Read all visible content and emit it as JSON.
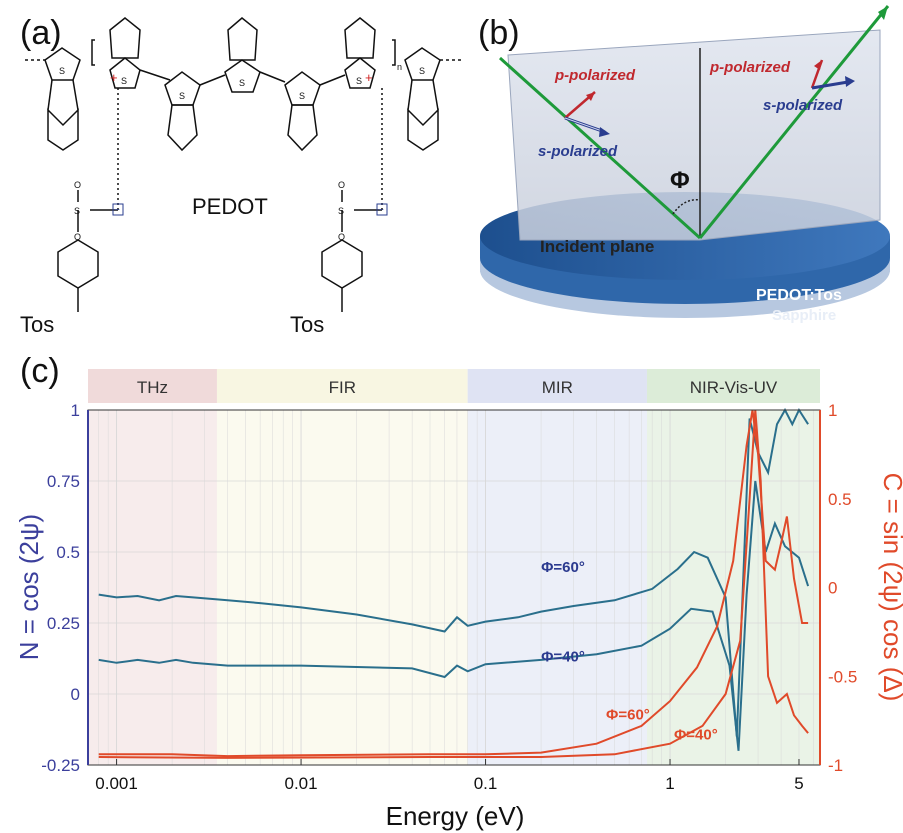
{
  "panel_a": {
    "label": "(a)",
    "molecule_name": "PEDOT",
    "tos_left": "Tos",
    "tos_right": "Tos",
    "atom_S": "S",
    "atom_O": "O",
    "subscript_n": "n",
    "plus": "+",
    "minus": "−"
  },
  "panel_b": {
    "label": "(b)",
    "p_polarized": "p-polarized",
    "s_polarized": "s-polarized",
    "angle_symbol": "Φ",
    "incident_plane": "Incident plane",
    "film": "PEDOT:Tos",
    "substrate": "Sapphire",
    "colors": {
      "beam": "#1e9a3a",
      "p_arrow": "#c0282e",
      "s_arrow": "#2a3d8f",
      "film": "#2d5f9e",
      "substrate": "#a9bdd6"
    }
  },
  "panel_c": {
    "label": "(c)",
    "chart_data": {
      "type": "line",
      "xscale": "log",
      "xlabel": "Energy (eV)",
      "ylabel_left": "N = cos (2ψ)",
      "ylabel_right": "C = sin (2ψ) cos (Δ)",
      "xlim": [
        0.0007,
        6.5
      ],
      "ylim_left": [
        -0.25,
        1
      ],
      "ylim_right": [
        -1,
        1
      ],
      "x_ticks": [
        {
          "v": 0.001,
          "label": "0.001"
        },
        {
          "v": 0.01,
          "label": "0.01"
        },
        {
          "v": 0.1,
          "label": "0.1"
        },
        {
          "v": 1,
          "label": "1"
        },
        {
          "v": 5,
          "label": "5"
        }
      ],
      "y_left_ticks": [
        {
          "v": 1,
          "label": "1"
        },
        {
          "v": 0.75,
          "label": "0.75"
        },
        {
          "v": 0.5,
          "label": "0.5"
        },
        {
          "v": 0.25,
          "label": "0.25"
        },
        {
          "v": 0,
          "label": "0"
        },
        {
          "v": -0.25,
          "label": "-0.25"
        }
      ],
      "y_right_ticks": [
        {
          "v": 1,
          "label": "1"
        },
        {
          "v": 0.5,
          "label": "0.5"
        },
        {
          "v": 0,
          "label": "0"
        },
        {
          "v": -0.5,
          "label": "-0.5"
        },
        {
          "v": -1,
          "label": "-1"
        }
      ],
      "regions": [
        {
          "label": "THz",
          "from": 0.0007,
          "to": 0.0035,
          "color": "#f0dada",
          "bg": "#f7ecec"
        },
        {
          "label": "FIR",
          "from": 0.0035,
          "to": 0.08,
          "color": "#f8f6e2",
          "bg": "#fbfaef"
        },
        {
          "label": "MIR",
          "from": 0.08,
          "to": 0.75,
          "color": "#dfe3f3",
          "bg": "#eceff8"
        },
        {
          "label": "NIR-Vis-UV",
          "from": 0.75,
          "to": 6.5,
          "color": "#dcecd8",
          "bg": "#eaf3e7"
        }
      ],
      "annotations": [
        {
          "text": "Φ=60°",
          "x": 0.2,
          "y": 0.43,
          "axis": "left",
          "color": "#2b3a8f"
        },
        {
          "text": "Φ=40°",
          "x": 0.2,
          "y": 0.115,
          "axis": "left",
          "color": "#2b3a8f"
        },
        {
          "text": "Φ=60°",
          "x": 0.45,
          "y": -0.745,
          "axis": "right",
          "color": "#e04a2a"
        },
        {
          "text": "Φ=40°",
          "x": 1.05,
          "y": -0.855,
          "axis": "right",
          "color": "#e04a2a"
        }
      ],
      "series": [
        {
          "axis": "left",
          "color": "#2a6f8c",
          "points": [
            [
              0.0008,
              0.35
            ],
            [
              0.001,
              0.34
            ],
            [
              0.0013,
              0.345
            ],
            [
              0.0017,
              0.33
            ],
            [
              0.0021,
              0.345
            ],
            [
              0.0026,
              0.34
            ],
            [
              0.004,
              0.33
            ],
            [
              0.006,
              0.32
            ],
            [
              0.01,
              0.305
            ],
            [
              0.02,
              0.28
            ],
            [
              0.04,
              0.245
            ],
            [
              0.06,
              0.22
            ],
            [
              0.07,
              0.27
            ],
            [
              0.08,
              0.24
            ],
            [
              0.1,
              0.255
            ],
            [
              0.15,
              0.27
            ],
            [
              0.2,
              0.29
            ],
            [
              0.3,
              0.31
            ],
            [
              0.5,
              0.33
            ],
            [
              0.8,
              0.37
            ],
            [
              1.1,
              0.44
            ],
            [
              1.35,
              0.5
            ],
            [
              1.6,
              0.48
            ],
            [
              2.0,
              0.34
            ],
            [
              2.3,
              -0.15
            ],
            [
              2.5,
              0.42
            ],
            [
              2.7,
              0.97
            ],
            [
              3.0,
              0.85
            ],
            [
              3.4,
              0.78
            ],
            [
              3.8,
              0.95
            ],
            [
              4.2,
              1.0
            ],
            [
              4.6,
              0.95
            ],
            [
              5.0,
              1.0
            ],
            [
              5.6,
              0.95
            ]
          ]
        },
        {
          "axis": "left",
          "color": "#2a6f8c",
          "points": [
            [
              0.0008,
              0.12
            ],
            [
              0.001,
              0.11
            ],
            [
              0.0013,
              0.12
            ],
            [
              0.0017,
              0.11
            ],
            [
              0.0021,
              0.12
            ],
            [
              0.0026,
              0.11
            ],
            [
              0.004,
              0.1
            ],
            [
              0.007,
              0.1
            ],
            [
              0.01,
              0.1
            ],
            [
              0.02,
              0.095
            ],
            [
              0.04,
              0.09
            ],
            [
              0.06,
              0.06
            ],
            [
              0.07,
              0.1
            ],
            [
              0.08,
              0.08
            ],
            [
              0.1,
              0.105
            ],
            [
              0.2,
              0.12
            ],
            [
              0.4,
              0.14
            ],
            [
              0.7,
              0.17
            ],
            [
              1.0,
              0.23
            ],
            [
              1.3,
              0.3
            ],
            [
              1.7,
              0.29
            ],
            [
              2.1,
              0.1
            ],
            [
              2.35,
              -0.2
            ],
            [
              2.6,
              0.35
            ],
            [
              2.9,
              0.75
            ],
            [
              3.3,
              0.5
            ],
            [
              3.7,
              0.6
            ],
            [
              4.2,
              0.52
            ],
            [
              5.0,
              0.48
            ],
            [
              5.6,
              0.38
            ]
          ]
        },
        {
          "axis": "right",
          "color": "#e04a2a",
          "points": [
            [
              0.0008,
              -0.94
            ],
            [
              0.002,
              -0.94
            ],
            [
              0.004,
              -0.95
            ],
            [
              0.01,
              -0.945
            ],
            [
              0.05,
              -0.94
            ],
            [
              0.1,
              -0.94
            ],
            [
              0.2,
              -0.93
            ],
            [
              0.4,
              -0.88
            ],
            [
              0.7,
              -0.78
            ],
            [
              1.0,
              -0.64
            ],
            [
              1.4,
              -0.45
            ],
            [
              1.8,
              -0.22
            ],
            [
              2.2,
              0.15
            ],
            [
              2.6,
              0.8
            ],
            [
              2.8,
              1.0
            ],
            [
              3.0,
              0.75
            ],
            [
              3.3,
              0.15
            ],
            [
              3.7,
              0.1
            ],
            [
              4.0,
              0.25
            ],
            [
              4.3,
              0.4
            ],
            [
              4.7,
              0.05
            ],
            [
              5.2,
              -0.2
            ],
            [
              5.6,
              -0.2
            ]
          ]
        },
        {
          "axis": "right",
          "color": "#e04a2a",
          "points": [
            [
              0.0008,
              -0.955
            ],
            [
              0.004,
              -0.96
            ],
            [
              0.05,
              -0.955
            ],
            [
              0.2,
              -0.955
            ],
            [
              0.5,
              -0.94
            ],
            [
              1.0,
              -0.88
            ],
            [
              1.5,
              -0.78
            ],
            [
              2.0,
              -0.6
            ],
            [
              2.4,
              -0.3
            ],
            [
              2.7,
              0.5
            ],
            [
              2.9,
              1.0
            ],
            [
              3.1,
              0.6
            ],
            [
              3.4,
              -0.5
            ],
            [
              3.8,
              -0.65
            ],
            [
              4.3,
              -0.6
            ],
            [
              4.7,
              -0.72
            ],
            [
              5.2,
              -0.78
            ],
            [
              5.6,
              -0.82
            ]
          ]
        }
      ]
    }
  }
}
